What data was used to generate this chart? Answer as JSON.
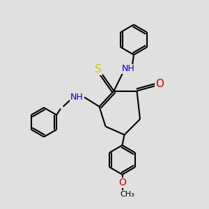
{
  "bg_color": "#e0e0e0",
  "bond_color": "#000000",
  "bond_width": 1.5,
  "atom_colors": {
    "N": "#0000cc",
    "O": "#cc0000",
    "S": "#cccc00",
    "H": "#008080",
    "C": "#000000"
  },
  "font_size": 9,
  "fig_size": [
    3.0,
    3.0
  ],
  "dpi": 100,
  "xlim": [
    0,
    10
  ],
  "ylim": [
    0,
    10
  ]
}
